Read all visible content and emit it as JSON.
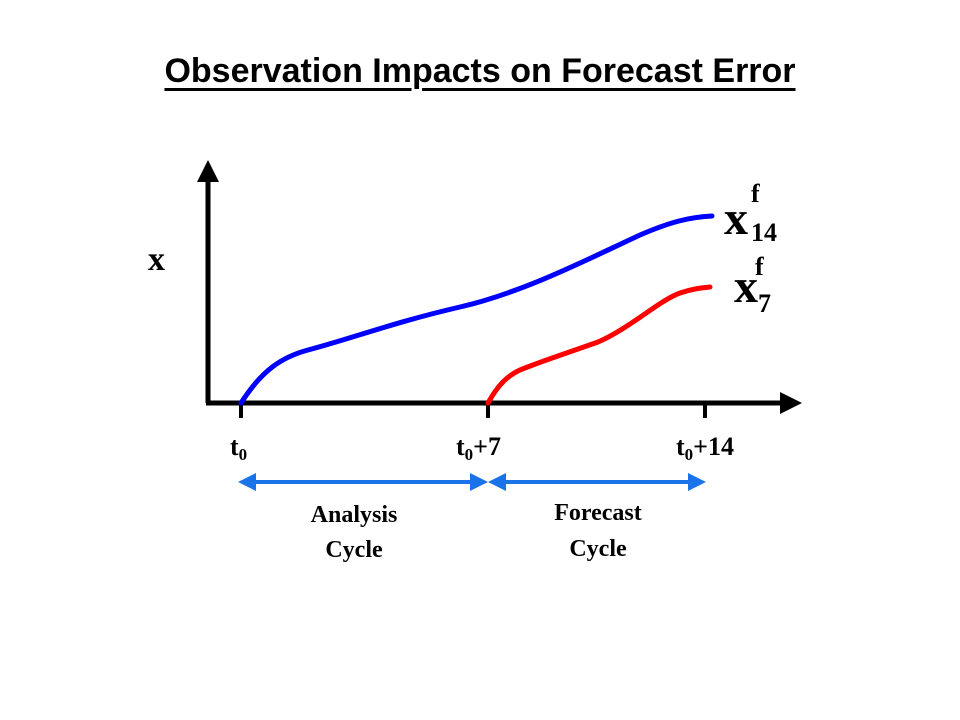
{
  "title": "Observation Impacts on Forecast Error",
  "y_axis_label": "x",
  "ticks": [
    {
      "base": "t",
      "sub": "0",
      "suffix": ""
    },
    {
      "base": "t",
      "sub": "0",
      "suffix": "+7"
    },
    {
      "base": "t",
      "sub": "0",
      "suffix": "+14"
    }
  ],
  "curves": [
    {
      "name_base": "x",
      "name_sup": "f",
      "name_sub": "14",
      "color": "#0000ff"
    },
    {
      "name_base": "x",
      "name_sup": "f",
      "name_sub": "7",
      "color": "#ff0000"
    }
  ],
  "spans": [
    {
      "label_line1": "Analysis",
      "label_line2": "Cycle",
      "color": "#1a73e8"
    },
    {
      "label_line1": "Forecast",
      "label_line2": "Cycle",
      "color": "#1a73e8"
    }
  ]
}
